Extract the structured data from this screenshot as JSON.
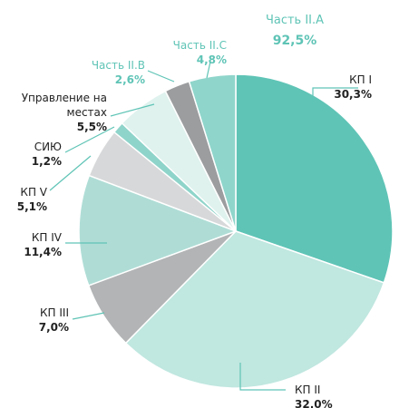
{
  "chart_data": {
    "type": "pie",
    "categories": [
      "КП I",
      "КП II",
      "КП III",
      "КП IV",
      "КП V",
      "СИЮ",
      "Управление на местах",
      "Часть II.B",
      "Часть II.C"
    ],
    "values": [
      30.3,
      32.0,
      7.0,
      11.4,
      5.1,
      1.2,
      5.5,
      2.6,
      4.8
    ],
    "value_labels": [
      "30,3%",
      "32,0%",
      "7,0%",
      "11,4%",
      "5,1%",
      "1,2%",
      "5,5%",
      "2,6%",
      "4,8%"
    ],
    "colors": [
      "#5fc4b6",
      "#c0e7e0",
      "#b2b4b5",
      "#afddd6",
      "#d7d8d9",
      "#8fd4ca",
      "#dff2ee",
      "#9b9d9f",
      "#8fd5cb"
    ],
    "annotation": {
      "text": "Часть II.A",
      "value": 92.5,
      "value_label": "92,5%"
    }
  }
}
